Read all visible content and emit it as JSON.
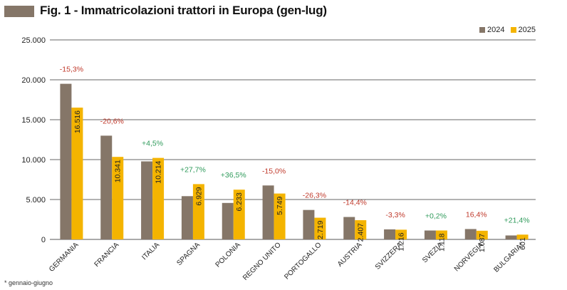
{
  "header": {
    "title": "Fig. 1 - Immatricolazioni trattori in Europa (gen-lug)"
  },
  "legend": {
    "items": [
      {
        "label": "2024",
        "color": "#857668"
      },
      {
        "label": "2025",
        "color": "#f4b400"
      }
    ]
  },
  "footnote": "* gennaio-giugno",
  "colors": {
    "series_2024": "#857668",
    "series_2025": "#f4b400",
    "negative": "#c0392b",
    "positive": "#2e9a5a"
  },
  "chart_data": {
    "type": "bar",
    "title": "Fig. 1 - Immatricolazioni trattori in Europa (gen-lug)",
    "xlabel": "",
    "ylabel": "",
    "ylim": [
      0,
      25000
    ],
    "yticks": [
      "0",
      "5.000",
      "10.000",
      "15.000",
      "20.000",
      "25.000"
    ],
    "ytick_values": [
      0,
      5000,
      10000,
      15000,
      20000,
      25000
    ],
    "grid": true,
    "legend_position": "top-right",
    "categories": [
      "GERMANIA",
      "FRANCIA",
      "ITALIA",
      "SPAGNA",
      "POLONIA",
      "REGNO UNITO",
      "PORTOGALLO",
      "AUSTRIA",
      "SVIZZERA",
      "SVEZIA",
      "NORVEGIA",
      "BULGARIA*"
    ],
    "series": [
      {
        "name": "2024",
        "values": [
          19500,
          13000,
          9780,
          5420,
          4570,
          6760,
          3690,
          2810,
          1258,
          1116,
          1300,
          495
        ]
      },
      {
        "name": "2025",
        "values": [
          16516,
          10341,
          10214,
          6929,
          6233,
          5749,
          2719,
          2407,
          1216,
          1118,
          1087,
          601
        ]
      }
    ],
    "value_labels_2025": [
      "16.516",
      "10.341",
      "10.214",
      "6.929",
      "6.233",
      "5.749",
      "2.719",
      "2.407",
      "1.216",
      "1.118",
      "1.087",
      "601"
    ],
    "changes": [
      "-15,3%",
      "-20,6%",
      "+4,5%",
      "+27,7%",
      "+36,5%",
      "-15,0%",
      "-26,3%",
      "-14,4%",
      "-3,3%",
      "+0,2%",
      "16,4%",
      "+21,4%"
    ],
    "change_sign": [
      "neg",
      "neg",
      "pos",
      "pos",
      "pos",
      "neg",
      "neg",
      "neg",
      "neg",
      "pos",
      "neg",
      "pos"
    ]
  }
}
